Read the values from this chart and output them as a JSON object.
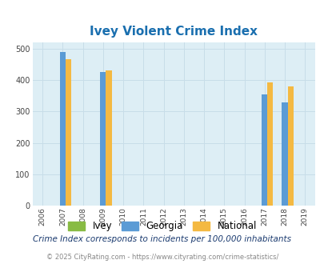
{
  "title": "Ivey Violent Crime Index",
  "title_color": "#1a6faf",
  "years": [
    2006,
    2007,
    2008,
    2009,
    2010,
    2011,
    2012,
    2013,
    2014,
    2015,
    2016,
    2017,
    2018,
    2019
  ],
  "ivey": [
    0,
    0,
    0,
    0,
    0,
    0,
    0,
    0,
    0,
    0,
    0,
    0,
    0,
    0
  ],
  "georgia": [
    0,
    490,
    0,
    425,
    0,
    0,
    0,
    0,
    0,
    0,
    0,
    355,
    328,
    0
  ],
  "national": [
    0,
    465,
    0,
    430,
    0,
    0,
    0,
    0,
    0,
    0,
    0,
    393,
    380,
    0
  ],
  "bar_width": 0.28,
  "color_ivey": "#88bb44",
  "color_georgia": "#5b9bd5",
  "color_national": "#f4b942",
  "bg_color": "#ddeef5",
  "ylim": [
    0,
    520
  ],
  "yticks": [
    0,
    100,
    200,
    300,
    400,
    500
  ],
  "grid_color": "#c8dde8",
  "legend_labels": [
    "Ivey",
    "Georgia",
    "National"
  ],
  "subtitle": "Crime Index corresponds to incidents per 100,000 inhabitants",
  "footer": "© 2025 CityRating.com - https://www.cityrating.com/crime-statistics/",
  "subtitle_color": "#1a3a6f",
  "footer_color": "#888888",
  "xlim_left": 2005.5,
  "xlim_right": 2019.5
}
